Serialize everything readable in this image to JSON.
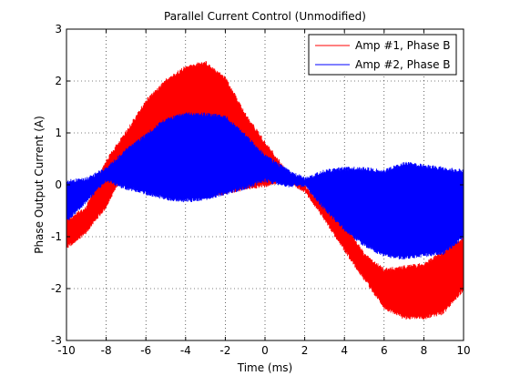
{
  "chart_data": {
    "type": "line",
    "title": "Parallel Current Control (Unmodified)",
    "xlabel": "Time (ms)",
    "ylabel": "Phase Output Current (A)",
    "xlim": [
      -10,
      10
    ],
    "ylim": [
      -3,
      3
    ],
    "xticks": [
      -10,
      -8,
      -6,
      -4,
      -2,
      0,
      2,
      4,
      6,
      8,
      10
    ],
    "yticks": [
      -3,
      -2,
      -1,
      0,
      1,
      2,
      3
    ],
    "xtick_labels": [
      "-10",
      "-8",
      "-6",
      "-4",
      "-2",
      "0",
      "2",
      "4",
      "6",
      "8",
      "10"
    ],
    "ytick_labels": [
      "-3",
      "-2",
      "-1",
      "0",
      "1",
      "2",
      "3"
    ],
    "grid": true,
    "legend_position": "top-right",
    "x": [
      -10,
      -9,
      -8,
      -7,
      -6,
      -5,
      -4,
      -3,
      -2,
      -1,
      0,
      1,
      2,
      3,
      4,
      5,
      6,
      7,
      8,
      9,
      10
    ],
    "series": [
      {
        "name": "Amp #1, Phase B",
        "color": "#ff0000",
        "upper": [
          -0.65,
          -0.4,
          0.5,
          1.05,
          1.65,
          2.05,
          2.3,
          2.4,
          2.1,
          1.4,
          0.85,
          0.35,
          0.0,
          -0.35,
          -0.7,
          -1.3,
          -1.6,
          -1.55,
          -1.5,
          -1.25,
          -1.0
        ],
        "lower": [
          -1.25,
          -0.95,
          -0.45,
          0.3,
          0.1,
          -0.05,
          -0.2,
          -0.25,
          -0.2,
          -0.1,
          -0.05,
          0.05,
          -0.15,
          -0.7,
          -1.3,
          -1.85,
          -2.4,
          -2.6,
          -2.6,
          -2.5,
          -2.05
        ]
      },
      {
        "name": "Amp #2, Phase B",
        "color": "#0000ff",
        "upper": [
          0.1,
          0.15,
          0.35,
          0.7,
          1.0,
          1.3,
          1.4,
          1.4,
          1.35,
          1.0,
          0.6,
          0.35,
          0.15,
          0.3,
          0.35,
          0.35,
          0.3,
          0.45,
          0.4,
          0.35,
          0.3
        ],
        "lower": [
          -0.75,
          -0.35,
          0.05,
          -0.1,
          -0.2,
          -0.3,
          -0.35,
          -0.3,
          -0.2,
          -0.1,
          0.05,
          -0.05,
          -0.05,
          -0.5,
          -0.9,
          -1.2,
          -1.4,
          -1.45,
          -1.4,
          -1.35,
          -1.05
        ]
      }
    ]
  }
}
